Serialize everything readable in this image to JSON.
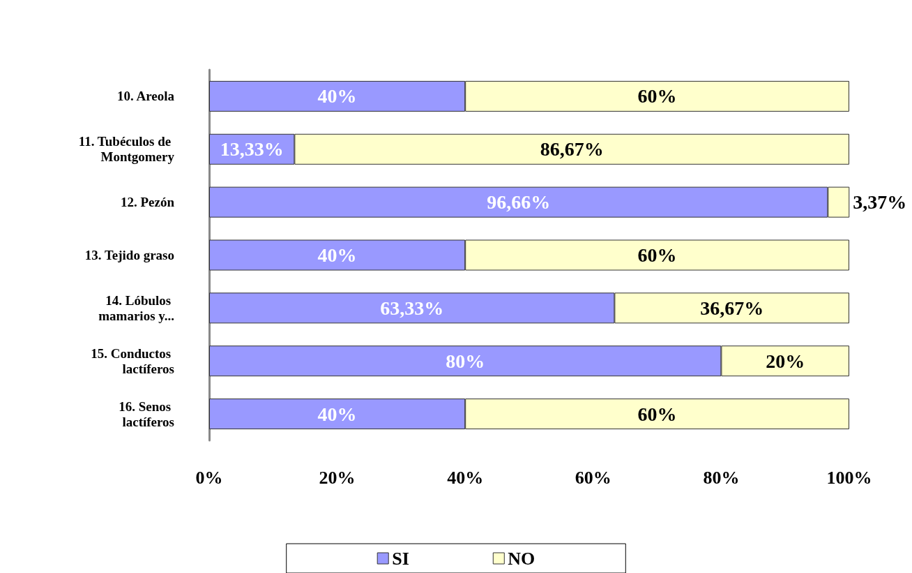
{
  "chart_data": {
    "type": "bar",
    "orientation": "horizontal",
    "stacked": true,
    "categories": [
      "10. Areola",
      "11. Tubéculos de Montgomery",
      "12. Pezón",
      "13. Tejido graso",
      "14. Lóbulos mamarios y...",
      "15. Conductos lactíferos",
      "16. Senos lactíferos"
    ],
    "series": [
      {
        "name": "SI",
        "color": "#9999ff",
        "values": [
          40,
          13.33,
          96.66,
          40,
          63.33,
          80,
          40
        ],
        "value_labels": [
          "40%",
          "13,33%",
          "96,66%",
          "40%",
          "63,33%",
          "80%",
          "40%"
        ]
      },
      {
        "name": "NO",
        "color": "#ffffcc",
        "values": [
          60,
          86.67,
          3.37,
          60,
          36.67,
          20,
          60
        ],
        "value_labels": [
          "60%",
          "86,67%",
          "3,37%",
          "60%",
          "36,67%",
          "20%",
          "60%"
        ]
      }
    ],
    "xlim": [
      0,
      100
    ],
    "xticks": [
      {
        "value": 0,
        "label": "0%"
      },
      {
        "value": 20,
        "label": "20%"
      },
      {
        "value": 40,
        "label": "40%"
      },
      {
        "value": 60,
        "label": "60%"
      },
      {
        "value": 80,
        "label": "80%"
      },
      {
        "value": 100,
        "label": "100%"
      }
    ],
    "grid": false,
    "legend": "bottom"
  }
}
